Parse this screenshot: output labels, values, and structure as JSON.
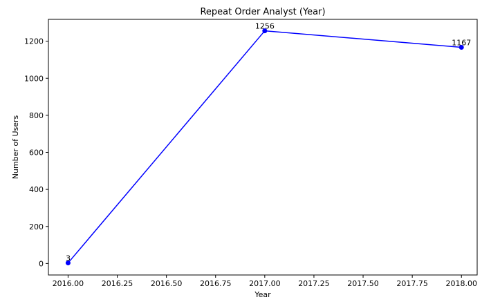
{
  "chart_data": {
    "type": "line",
    "title": "Repeat Order Analyst (Year)",
    "xlabel": "Year",
    "ylabel": "Number of Users",
    "xlim": [
      2015.9,
      2018.08
    ],
    "ylim": [
      -62,
      1318
    ],
    "x_ticks": [
      2016.0,
      2016.25,
      2016.5,
      2016.75,
      2017.0,
      2017.25,
      2017.5,
      2017.75,
      2018.0
    ],
    "x_tick_labels": [
      "2016.00",
      "2016.25",
      "2016.50",
      "2016.75",
      "2017.00",
      "2017.25",
      "2017.50",
      "2017.75",
      "2018.00"
    ],
    "y_ticks": [
      0,
      200,
      400,
      600,
      800,
      1000,
      1200
    ],
    "y_tick_labels": [
      "0",
      "200",
      "400",
      "600",
      "800",
      "1000",
      "1200"
    ],
    "grid": false,
    "series": [
      {
        "color": "#0000ff",
        "x": [
          2016,
          2017,
          2018
        ],
        "y": [
          3,
          1256,
          1167
        ],
        "labels": [
          "3",
          "1256",
          "1167"
        ]
      }
    ]
  }
}
